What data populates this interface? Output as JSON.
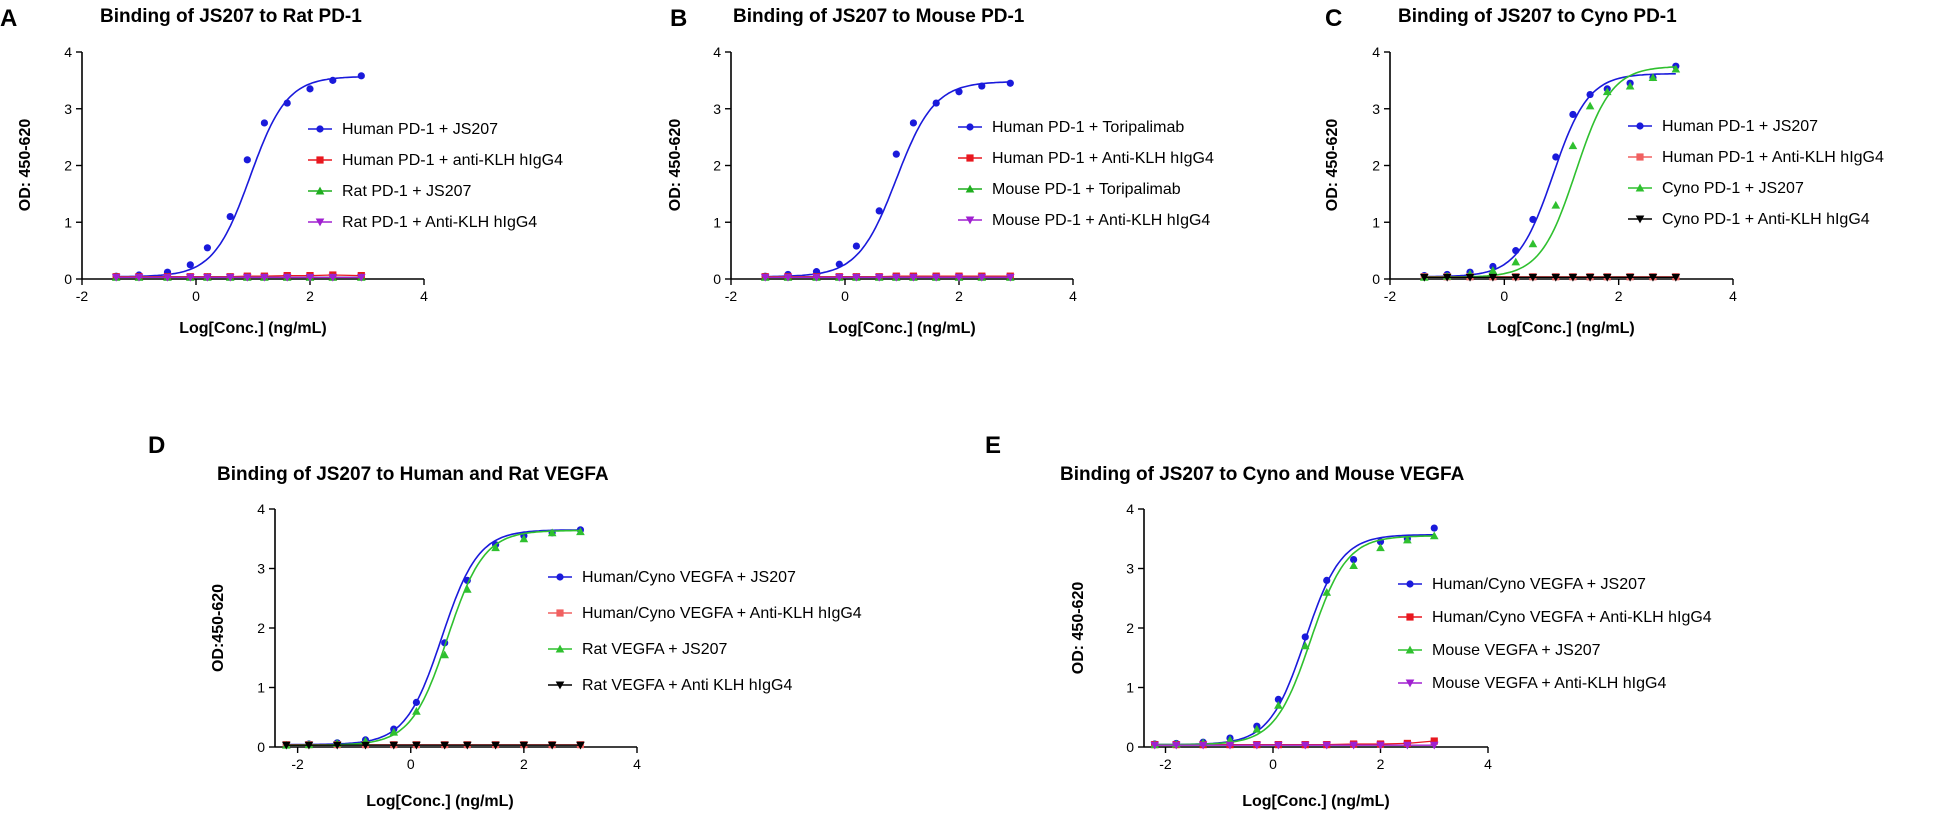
{
  "figure": {
    "panels": [
      "A",
      "B",
      "C",
      "D",
      "E"
    ]
  },
  "chart_data": [
    {
      "panel": "A",
      "type": "line",
      "title": "Binding of JS207 to Rat PD-1",
      "xlabel": "Log[Conc.] (ng/mL)",
      "ylabel": "OD: 450-620",
      "xlim": [
        -2,
        4
      ],
      "ylim": [
        0,
        4
      ],
      "xticks": [
        -2,
        0,
        2,
        4
      ],
      "yticks": [
        0,
        1,
        2,
        3,
        4
      ],
      "legend": "right",
      "x": [
        -1.4,
        -1.0,
        -0.5,
        -0.1,
        0.2,
        0.6,
        0.9,
        1.2,
        1.6,
        2.0,
        2.4,
        2.9
      ],
      "series": [
        {
          "name": "Human PD-1 + JS207",
          "color": "#1a1adb",
          "marker": "circle",
          "values": [
            0.05,
            0.07,
            0.12,
            0.25,
            0.55,
            1.1,
            2.1,
            2.75,
            3.1,
            3.35,
            3.5,
            3.58
          ],
          "fit": {
            "bottom": 0.04,
            "top": 3.57,
            "logec50": 0.95,
            "hill": 1.35
          }
        },
        {
          "name": "Human PD-1 + anti-KLH hIgG4",
          "color": "#e8171f",
          "marker": "square",
          "values": [
            0.04,
            0.04,
            0.04,
            0.04,
            0.04,
            0.04,
            0.05,
            0.05,
            0.06,
            0.06,
            0.07,
            0.06
          ]
        },
        {
          "name": "Rat PD-1 + JS207",
          "color": "#1fae1f",
          "marker": "triangle-up",
          "values": [
            0.03,
            0.03,
            0.03,
            0.03,
            0.03,
            0.03,
            0.03,
            0.03,
            0.03,
            0.03,
            0.03,
            0.03
          ]
        },
        {
          "name": "Rat PD-1 + Anti-KLH hIgG4",
          "color": "#a020d0",
          "marker": "triangle-down",
          "values": [
            0.03,
            0.03,
            0.03,
            0.03,
            0.03,
            0.03,
            0.03,
            0.03,
            0.03,
            0.03,
            0.03,
            0.03
          ]
        }
      ]
    },
    {
      "panel": "B",
      "type": "line",
      "title": "Binding of JS207 to Mouse PD-1",
      "xlabel": "Log[Conc.] (ng/mL)",
      "ylabel": "OD: 450-620",
      "xlim": [
        -2,
        4
      ],
      "ylim": [
        0,
        4
      ],
      "xticks": [
        -2,
        0,
        2,
        4
      ],
      "yticks": [
        0,
        1,
        2,
        3,
        4
      ],
      "legend": "right",
      "x": [
        -1.4,
        -1.0,
        -0.5,
        -0.1,
        0.2,
        0.6,
        0.9,
        1.2,
        1.6,
        2.0,
        2.4,
        2.9
      ],
      "series": [
        {
          "name": "Human PD-1 + Toripalimab",
          "color": "#1a1adb",
          "marker": "circle",
          "values": [
            0.05,
            0.08,
            0.13,
            0.26,
            0.58,
            1.2,
            2.2,
            2.75,
            3.1,
            3.3,
            3.4,
            3.45
          ],
          "fit": {
            "bottom": 0.04,
            "top": 3.48,
            "logec50": 0.9,
            "hill": 1.3
          }
        },
        {
          "name": "Human PD-1 + Anti-KLH hIgG4",
          "color": "#e8171f",
          "marker": "square",
          "values": [
            0.04,
            0.04,
            0.04,
            0.04,
            0.04,
            0.04,
            0.05,
            0.05,
            0.05,
            0.05,
            0.05,
            0.05
          ]
        },
        {
          "name": "Mouse PD-1 + Toripalimab",
          "color": "#1fae1f",
          "marker": "triangle-up",
          "values": [
            0.03,
            0.03,
            0.03,
            0.03,
            0.03,
            0.03,
            0.03,
            0.03,
            0.03,
            0.03,
            0.03,
            0.03
          ]
        },
        {
          "name": "Mouse PD-1 + Anti-KLH hIgG4",
          "color": "#a020d0",
          "marker": "triangle-down",
          "values": [
            0.03,
            0.03,
            0.03,
            0.03,
            0.03,
            0.03,
            0.03,
            0.03,
            0.03,
            0.03,
            0.03,
            0.03
          ]
        }
      ]
    },
    {
      "panel": "C",
      "type": "line",
      "title": "Binding of JS207 to Cyno PD-1",
      "xlabel": "Log[Conc.] (ng/mL)",
      "ylabel": "OD: 450-620",
      "xlim": [
        -2,
        4
      ],
      "ylim": [
        0,
        4
      ],
      "xticks": [
        -2,
        0,
        2,
        4
      ],
      "yticks": [
        0,
        1,
        2,
        3,
        4
      ],
      "legend": "right",
      "x": [
        -1.4,
        -1.0,
        -0.6,
        -0.2,
        0.2,
        0.5,
        0.9,
        1.2,
        1.5,
        1.8,
        2.2,
        2.6,
        3.0
      ],
      "series": [
        {
          "name": "Human PD-1 + JS207",
          "color": "#1a1adb",
          "marker": "circle",
          "values": [
            0.06,
            0.08,
            0.12,
            0.22,
            0.5,
            1.05,
            2.15,
            2.9,
            3.25,
            3.35,
            3.45,
            3.55,
            3.75
          ],
          "fit": {
            "bottom": 0.04,
            "top": 3.62,
            "logec50": 0.85,
            "hill": 1.4
          }
        },
        {
          "name": "Human PD-1 + Anti-KLH hIgG4",
          "color": "#f06060",
          "marker": "square",
          "values": [
            0.04,
            0.04,
            0.04,
            0.04,
            0.04,
            0.04,
            0.04,
            0.04,
            0.04,
            0.04,
            0.04,
            0.04,
            0.04
          ]
        },
        {
          "name": "Cyno PD-1 + JS207",
          "color": "#2fc02f",
          "marker": "triangle-up",
          "values": [
            0.03,
            0.05,
            0.09,
            0.15,
            0.3,
            0.62,
            1.3,
            2.35,
            3.05,
            3.3,
            3.4,
            3.55,
            3.7
          ],
          "fit": {
            "bottom": 0.03,
            "top": 3.75,
            "logec50": 1.25,
            "hill": 1.4
          }
        },
        {
          "name": "Cyno PD-1 + Anti-KLH hIgG4",
          "color": "#000000",
          "marker": "triangle-down",
          "values": [
            0.03,
            0.03,
            0.03,
            0.03,
            0.03,
            0.03,
            0.03,
            0.03,
            0.03,
            0.03,
            0.03,
            0.03,
            0.03
          ]
        }
      ]
    },
    {
      "panel": "D",
      "type": "line",
      "title": "Binding of JS207 to Human and Rat VEGFA",
      "xlabel": "Log[Conc.] (ng/mL)",
      "ylabel": "OD:450-620",
      "xlim": [
        -2.4,
        4
      ],
      "ylim": [
        0,
        4
      ],
      "xticks": [
        -2,
        0,
        2,
        4
      ],
      "yticks": [
        0,
        1,
        2,
        3,
        4
      ],
      "legend": "right",
      "x": [
        -2.2,
        -1.8,
        -1.3,
        -0.8,
        -0.3,
        0.1,
        0.6,
        1.0,
        1.5,
        2.0,
        2.5,
        3.0
      ],
      "series": [
        {
          "name": "Human/Cyno VEGFA + JS207",
          "color": "#1a1adb",
          "marker": "circle",
          "values": [
            0.04,
            0.05,
            0.07,
            0.12,
            0.3,
            0.75,
            1.75,
            2.8,
            3.4,
            3.55,
            3.6,
            3.65
          ],
          "fit": {
            "bottom": 0.04,
            "top": 3.65,
            "logec50": 0.55,
            "hill": 1.35
          }
        },
        {
          "name": "Human/Cyno VEGFA + Anti-KLH hIgG4",
          "color": "#f06060",
          "marker": "square",
          "values": [
            0.04,
            0.04,
            0.04,
            0.04,
            0.04,
            0.04,
            0.04,
            0.04,
            0.04,
            0.04,
            0.04,
            0.04
          ]
        },
        {
          "name": "Rat VEGFA + JS207",
          "color": "#2fc02f",
          "marker": "triangle-up",
          "values": [
            0.03,
            0.04,
            0.06,
            0.1,
            0.25,
            0.6,
            1.55,
            2.65,
            3.35,
            3.5,
            3.6,
            3.62
          ],
          "fit": {
            "bottom": 0.03,
            "top": 3.64,
            "logec50": 0.65,
            "hill": 1.35
          }
        },
        {
          "name": "Rat VEGFA + Anti KLH hIgG4",
          "color": "#000000",
          "marker": "triangle-down",
          "values": [
            0.03,
            0.03,
            0.03,
            0.03,
            0.03,
            0.03,
            0.03,
            0.03,
            0.03,
            0.03,
            0.03,
            0.03
          ]
        }
      ]
    },
    {
      "panel": "E",
      "type": "line",
      "title": "Binding of JS207 to Cyno and Mouse VEGFA",
      "xlabel": "Log[Conc.] (ng/mL)",
      "ylabel": "OD: 450-620",
      "xlim": [
        -2.4,
        4
      ],
      "ylim": [
        0,
        4
      ],
      "xticks": [
        -2,
        0,
        2,
        4
      ],
      "yticks": [
        0,
        1,
        2,
        3,
        4
      ],
      "legend": "right",
      "x": [
        -2.2,
        -1.8,
        -1.3,
        -0.8,
        -0.3,
        0.1,
        0.6,
        1.0,
        1.5,
        2.0,
        2.5,
        3.0
      ],
      "series": [
        {
          "name": "Human/Cyno VEGFA + JS207",
          "color": "#1a1adb",
          "marker": "circle",
          "values": [
            0.05,
            0.06,
            0.08,
            0.15,
            0.35,
            0.8,
            1.85,
            2.8,
            3.15,
            3.45,
            3.5,
            3.68
          ],
          "fit": {
            "bottom": 0.04,
            "top": 3.57,
            "logec50": 0.6,
            "hill": 1.3
          }
        },
        {
          "name": "Human/Cyno VEGFA + Anti-KLH hIgG4",
          "color": "#e8171f",
          "marker": "square",
          "values": [
            0.04,
            0.04,
            0.04,
            0.04,
            0.04,
            0.04,
            0.04,
            0.04,
            0.05,
            0.05,
            0.06,
            0.1
          ]
        },
        {
          "name": "Mouse VEGFA + JS207",
          "color": "#2fc02f",
          "marker": "triangle-up",
          "values": [
            0.04,
            0.05,
            0.07,
            0.12,
            0.3,
            0.7,
            1.7,
            2.6,
            3.05,
            3.35,
            3.48,
            3.55
          ],
          "fit": {
            "bottom": 0.04,
            "top": 3.55,
            "logec50": 0.7,
            "hill": 1.3
          }
        },
        {
          "name": "Mouse VEGFA + Anti-KLH hIgG4",
          "color": "#a020d0",
          "marker": "triangle-down",
          "values": [
            0.03,
            0.03,
            0.03,
            0.03,
            0.03,
            0.03,
            0.03,
            0.03,
            0.03,
            0.03,
            0.03,
            0.03
          ]
        }
      ]
    }
  ]
}
